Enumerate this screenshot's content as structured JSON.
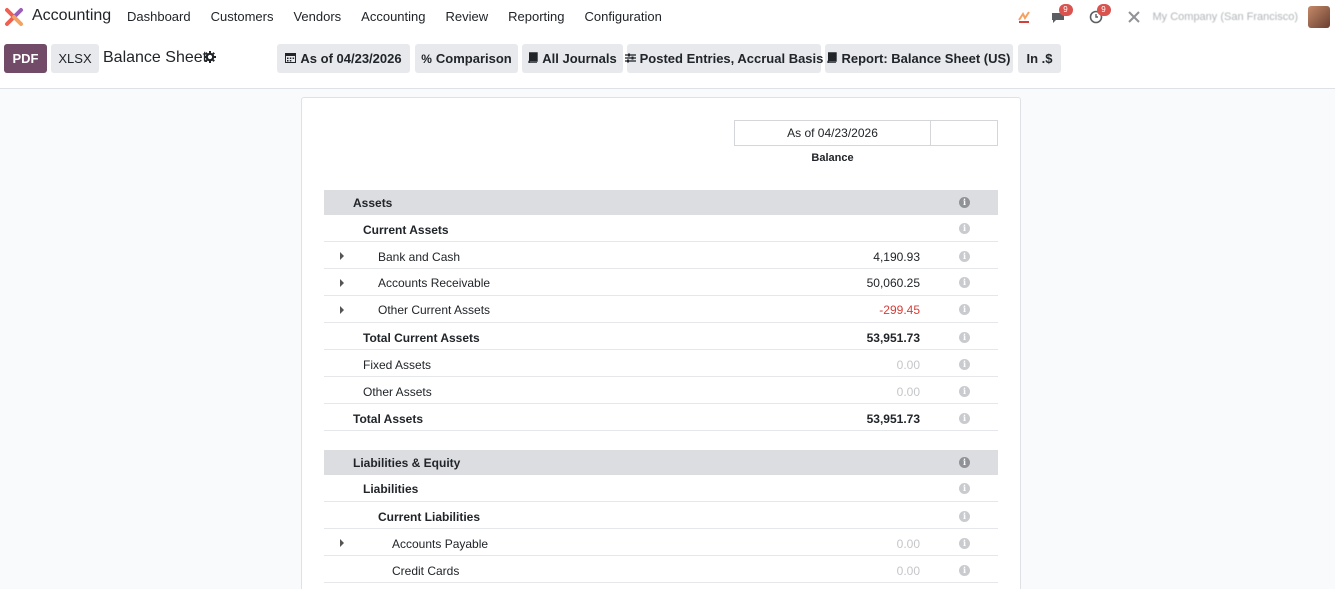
{
  "navbar": {
    "app_name": "Accounting",
    "menu": [
      "Dashboard",
      "Customers",
      "Vendors",
      "Accounting",
      "Review",
      "Reporting",
      "Configuration"
    ],
    "badges": {
      "messages": "9",
      "activities": "9"
    },
    "company": "My Company (San Francisco)"
  },
  "control": {
    "pdf_label": "PDF",
    "xlsx_label": "XLSX",
    "title": "Balance Sheet",
    "filters": {
      "date": "As of 04/23/2026",
      "comparison": "Comparison",
      "journals": "All Journals",
      "entries": "Posted Entries, Accrual Basis",
      "report": "Report: Balance Sheet (US)",
      "currency": "In .$"
    }
  },
  "report": {
    "column_date": "As of 04/23/2026",
    "column_label": "Balance",
    "rows": [
      {
        "label": "Assets",
        "amount": "",
        "type": "section"
      },
      {
        "label": "Current Assets",
        "amount": "",
        "type": "group"
      },
      {
        "label": "Bank and Cash",
        "amount": "4,190.93",
        "type": "account"
      },
      {
        "label": "Accounts Receivable",
        "amount": "50,060.25",
        "type": "account"
      },
      {
        "label": "Other Current Assets",
        "amount": "-299.45",
        "type": "account"
      },
      {
        "label": "Total Current Assets",
        "amount": "53,951.73",
        "type": "total"
      },
      {
        "label": "Fixed Assets",
        "amount": "0.00",
        "type": "sub"
      },
      {
        "label": "Other Assets",
        "amount": "0.00",
        "type": "sub"
      },
      {
        "label": "Total Assets",
        "amount": "53,951.73",
        "type": "grand"
      },
      {
        "label": "Liabilities & Equity",
        "amount": "",
        "type": "section"
      },
      {
        "label": "Liabilities",
        "amount": "",
        "type": "group"
      },
      {
        "label": "Current Liabilities",
        "amount": "",
        "type": "group2"
      },
      {
        "label": "Accounts Payable",
        "amount": "0.00",
        "type": "account2"
      },
      {
        "label": "Credit Cards",
        "amount": "0.00",
        "type": "leaf2"
      }
    ]
  },
  "colors": {
    "brand": "#714b67",
    "negative": "#d43f3a",
    "section_bg": "#dcdde1"
  }
}
